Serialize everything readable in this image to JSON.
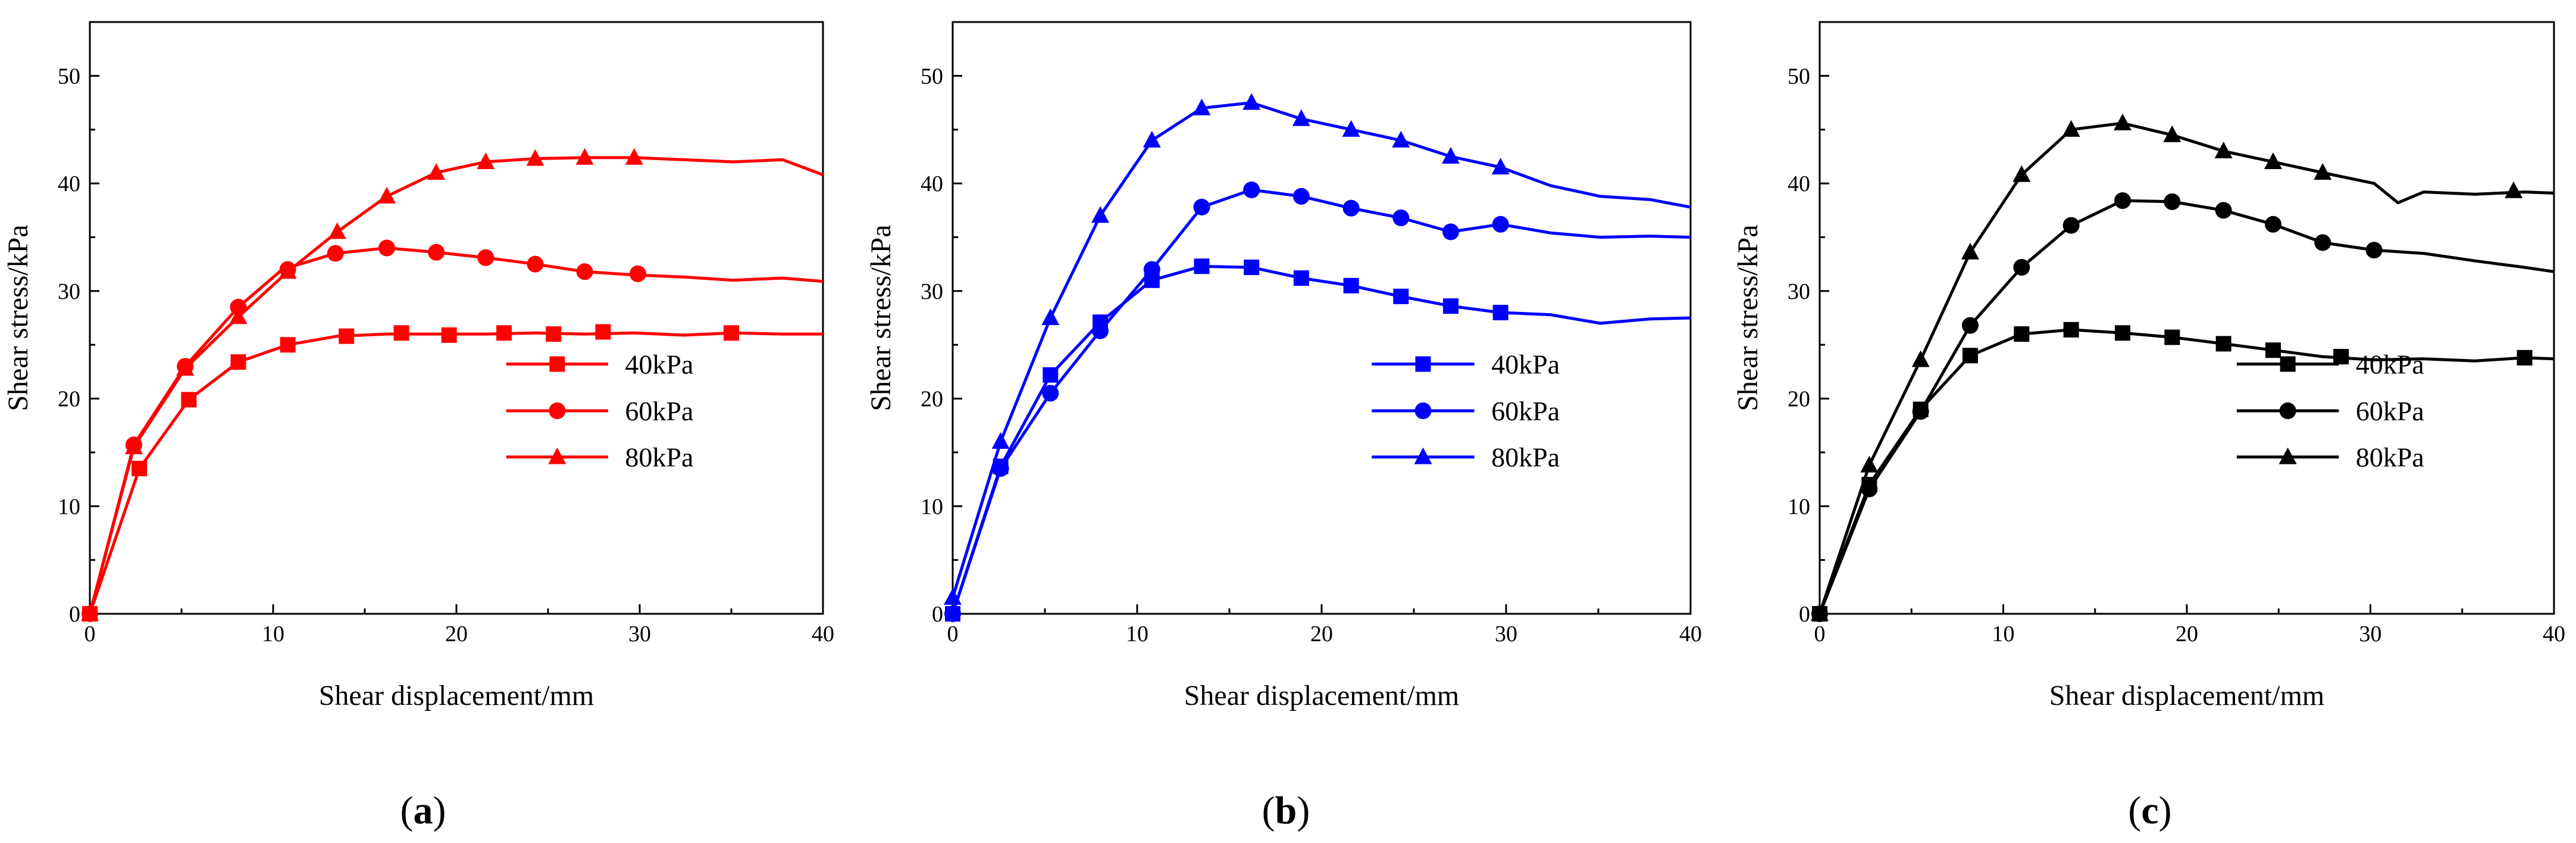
{
  "chart_data": [
    {
      "type": "line",
      "panel": "a",
      "caption": "(a)",
      "caption_letter": "a",
      "color": "#ff0000",
      "xlabel": "Shear displacement/mm",
      "ylabel": "Shear stress/kPa",
      "xlim": [
        0,
        40
      ],
      "ylim": [
        0,
        55
      ],
      "xticks": [
        0,
        10,
        20,
        30,
        40
      ],
      "yticks": [
        0,
        10,
        20,
        30,
        40,
        50
      ],
      "legend_position": "center-right",
      "series": [
        {
          "name": "40kPa",
          "marker": "square",
          "x": [
            0,
            2.7,
            5.4,
            8.1,
            10.8,
            13.5,
            16.2,
            18.9,
            21.6,
            24.3,
            27,
            29.7,
            32.4,
            35.1,
            37.8,
            40
          ],
          "y": [
            0,
            13.5,
            19.9,
            23.4,
            25.0,
            25.8,
            26.0,
            26.0,
            26.0,
            26.1,
            26.0,
            26.1,
            25.9,
            26.1,
            26.0,
            26.0
          ],
          "markers": [
            [
              0,
              0
            ],
            [
              2.7,
              13.5
            ],
            [
              5.4,
              19.9
            ],
            [
              8.1,
              23.4
            ],
            [
              10.8,
              25.0
            ],
            [
              14.0,
              25.8
            ],
            [
              17.0,
              26.1
            ],
            [
              19.6,
              25.9
            ],
            [
              22.6,
              26.1
            ],
            [
              25.3,
              26.0
            ],
            [
              28.0,
              26.2
            ],
            [
              35.0,
              26.1
            ]
          ]
        },
        {
          "name": "60kPa",
          "marker": "circle",
          "x": [
            0,
            2.4,
            5.2,
            8.1,
            10.5,
            13.4,
            16.2,
            18.9,
            21.6,
            24.3,
            27,
            29.7,
            32.4,
            35.1,
            37.8,
            40
          ],
          "y": [
            0,
            15.7,
            23.0,
            28.5,
            32.0,
            33.5,
            34.0,
            33.6,
            33.1,
            32.5,
            31.8,
            31.5,
            31.3,
            31.0,
            31.2,
            30.9
          ],
          "markers": [
            [
              0,
              0
            ],
            [
              2.4,
              15.7
            ],
            [
              5.2,
              23.0
            ],
            [
              8.1,
              28.5
            ],
            [
              10.8,
              32.0
            ],
            [
              13.4,
              33.5
            ],
            [
              16.2,
              34.0
            ],
            [
              18.9,
              33.6
            ],
            [
              21.6,
              33.1
            ],
            [
              24.3,
              32.5
            ],
            [
              27.0,
              31.8
            ],
            [
              29.9,
              31.6
            ]
          ]
        },
        {
          "name": "80kPa",
          "marker": "triangle",
          "x": [
            0,
            2.4,
            5.2,
            8.1,
            10.8,
            13.5,
            16.2,
            18.9,
            21.6,
            24.3,
            27,
            29.7,
            32.4,
            35.1,
            37.8,
            40
          ],
          "y": [
            0,
            15.5,
            22.8,
            27.6,
            31.8,
            35.5,
            38.8,
            41.0,
            42.0,
            42.3,
            42.4,
            42.4,
            42.2,
            42.0,
            42.2,
            40.8
          ],
          "markers": [
            [
              0,
              0
            ],
            [
              2.4,
              15.5
            ],
            [
              5.2,
              22.8
            ],
            [
              8.1,
              27.6
            ],
            [
              10.8,
              31.8
            ],
            [
              13.5,
              35.5
            ],
            [
              16.2,
              38.8
            ],
            [
              18.9,
              41.0
            ],
            [
              21.6,
              42.0
            ],
            [
              24.3,
              42.3
            ],
            [
              27.0,
              42.4
            ],
            [
              29.7,
              42.4
            ]
          ]
        }
      ]
    },
    {
      "type": "line",
      "panel": "b",
      "caption": "(b)",
      "caption_letter": "b",
      "color": "#0000ff",
      "xlabel": "Shear displacement/mm",
      "ylabel": "Shear stress/kPa",
      "xlim": [
        0,
        40
      ],
      "ylim": [
        0,
        55
      ],
      "xticks": [
        0,
        10,
        20,
        30,
        40
      ],
      "yticks": [
        0,
        10,
        20,
        30,
        40,
        50
      ],
      "legend_position": "center-right",
      "series": [
        {
          "name": "40kPa",
          "marker": "square",
          "x": [
            0,
            2.6,
            5.3,
            8.0,
            10.8,
            13.5,
            16.2,
            18.9,
            21.6,
            24.3,
            27,
            29.7,
            32.4,
            35.1,
            37.8,
            40
          ],
          "y": [
            0,
            13.7,
            22.2,
            27.1,
            31.0,
            32.3,
            32.2,
            31.2,
            30.5,
            29.5,
            28.6,
            28.0,
            27.8,
            27.0,
            27.4,
            27.5
          ],
          "markers": [
            [
              0,
              0
            ],
            [
              2.6,
              13.7
            ],
            [
              5.3,
              22.2
            ],
            [
              8.0,
              27.1
            ],
            [
              10.8,
              31.0
            ],
            [
              13.5,
              32.3
            ],
            [
              16.2,
              32.2
            ],
            [
              18.9,
              31.2
            ],
            [
              21.6,
              30.5
            ],
            [
              24.3,
              29.5
            ],
            [
              27.0,
              28.6
            ],
            [
              29.7,
              28.0
            ]
          ]
        },
        {
          "name": "60kPa",
          "marker": "circle",
          "x": [
            0,
            2.6,
            5.3,
            8.0,
            10.8,
            13.5,
            16.2,
            18.9,
            21.6,
            24.3,
            27,
            29.7,
            32.4,
            35.1,
            37.8,
            40
          ],
          "y": [
            0,
            13.5,
            20.5,
            26.3,
            32.0,
            37.8,
            39.4,
            38.8,
            37.7,
            36.8,
            35.5,
            36.2,
            35.4,
            35.0,
            35.1,
            35.0
          ],
          "markers": [
            [
              0,
              0
            ],
            [
              2.6,
              13.5
            ],
            [
              5.3,
              20.5
            ],
            [
              8.0,
              26.3
            ],
            [
              10.8,
              32.0
            ],
            [
              13.5,
              37.8
            ],
            [
              16.2,
              39.4
            ],
            [
              18.9,
              38.8
            ],
            [
              21.6,
              37.7
            ],
            [
              24.3,
              36.8
            ],
            [
              27.0,
              35.5
            ],
            [
              29.7,
              36.2
            ]
          ]
        },
        {
          "name": "80kPa",
          "marker": "triangle",
          "x": [
            0,
            2.6,
            5.3,
            8.0,
            10.8,
            13.5,
            16.2,
            18.9,
            21.6,
            24.3,
            27,
            29.7,
            32.4,
            35.1,
            37.8,
            40
          ],
          "y": [
            1.5,
            16.0,
            27.5,
            37.0,
            44.0,
            47.0,
            47.5,
            46.0,
            45.0,
            44.0,
            42.5,
            41.5,
            39.8,
            38.8,
            38.5,
            37.8
          ],
          "markers": [
            [
              0,
              1.5
            ],
            [
              2.6,
              16.0
            ],
            [
              5.3,
              27.5
            ],
            [
              8.0,
              37.0
            ],
            [
              10.8,
              44.0
            ],
            [
              13.5,
              47.0
            ],
            [
              16.2,
              47.5
            ],
            [
              18.9,
              46.0
            ],
            [
              21.6,
              45.0
            ],
            [
              24.3,
              44.0
            ],
            [
              27.0,
              42.5
            ],
            [
              29.7,
              41.5
            ]
          ]
        }
      ]
    },
    {
      "type": "line",
      "panel": "c",
      "caption": "(c)",
      "caption_letter": "c",
      "color": "#000000",
      "xlabel": "Shear displacement/mm",
      "ylabel": "Shear stress/kPa",
      "xlim": [
        0,
        40
      ],
      "ylim": [
        0,
        55
      ],
      "xticks": [
        0,
        10,
        20,
        30,
        40
      ],
      "yticks": [
        0,
        10,
        20,
        30,
        40,
        50
      ],
      "legend_position": "center-right",
      "series": [
        {
          "name": "40kPa",
          "marker": "square",
          "x": [
            0,
            2.7,
            5.5,
            8.2,
            11.0,
            13.7,
            16.5,
            19.2,
            22.0,
            24.7,
            27.4,
            30.2,
            32.9,
            35.7,
            38.4,
            40
          ],
          "y": [
            0,
            12.0,
            19.0,
            24.0,
            26.0,
            26.4,
            26.1,
            25.7,
            25.1,
            24.5,
            23.9,
            23.6,
            23.7,
            23.5,
            23.8,
            23.7
          ],
          "markers": [
            [
              0,
              0
            ],
            [
              2.7,
              12.0
            ],
            [
              5.5,
              19.0
            ],
            [
              8.2,
              24.0
            ],
            [
              11.0,
              26.0
            ],
            [
              13.7,
              26.4
            ],
            [
              16.5,
              26.1
            ],
            [
              19.2,
              25.7
            ],
            [
              22.0,
              25.1
            ],
            [
              24.7,
              24.5
            ],
            [
              28.4,
              23.9
            ],
            [
              38.4,
              23.8
            ]
          ]
        },
        {
          "name": "60kPa",
          "marker": "circle",
          "x": [
            0,
            2.7,
            5.5,
            8.2,
            11.0,
            13.7,
            16.5,
            19.2,
            22.0,
            24.7,
            27.4,
            30.2,
            32.9,
            35.7,
            38.4,
            40
          ],
          "y": [
            0,
            11.6,
            18.8,
            26.8,
            32.2,
            36.1,
            38.4,
            38.3,
            37.5,
            36.2,
            34.5,
            33.8,
            33.5,
            32.8,
            32.2,
            31.8
          ],
          "markers": [
            [
              0,
              0
            ],
            [
              2.7,
              11.6
            ],
            [
              5.5,
              18.8
            ],
            [
              8.2,
              26.8
            ],
            [
              11.0,
              32.2
            ],
            [
              13.7,
              36.1
            ],
            [
              16.5,
              38.4
            ],
            [
              19.2,
              38.3
            ],
            [
              22.0,
              37.5
            ],
            [
              24.7,
              36.2
            ],
            [
              27.4,
              34.5
            ],
            [
              30.2,
              33.8
            ]
          ]
        },
        {
          "name": "80kPa",
          "marker": "triangle",
          "x": [
            0,
            2.7,
            5.5,
            8.2,
            11.0,
            13.7,
            16.5,
            19.2,
            22.0,
            24.7,
            27.4,
            30.2,
            31.5,
            32.9,
            35.7,
            38.4,
            40
          ],
          "y": [
            0,
            13.8,
            23.6,
            33.6,
            40.8,
            45.0,
            45.6,
            44.5,
            43.0,
            42.0,
            41.0,
            40.0,
            38.2,
            39.2,
            39.0,
            39.2,
            39.1
          ],
          "markers": [
            [
              0,
              0
            ],
            [
              2.7,
              13.8
            ],
            [
              5.5,
              23.6
            ],
            [
              8.2,
              33.6
            ],
            [
              11.0,
              40.8
            ],
            [
              13.7,
              45.0
            ],
            [
              16.5,
              45.6
            ],
            [
              19.2,
              44.5
            ],
            [
              22.0,
              43.0
            ],
            [
              24.7,
              42.0
            ],
            [
              27.4,
              41.0
            ],
            [
              37.8,
              39.3
            ]
          ]
        }
      ]
    }
  ]
}
